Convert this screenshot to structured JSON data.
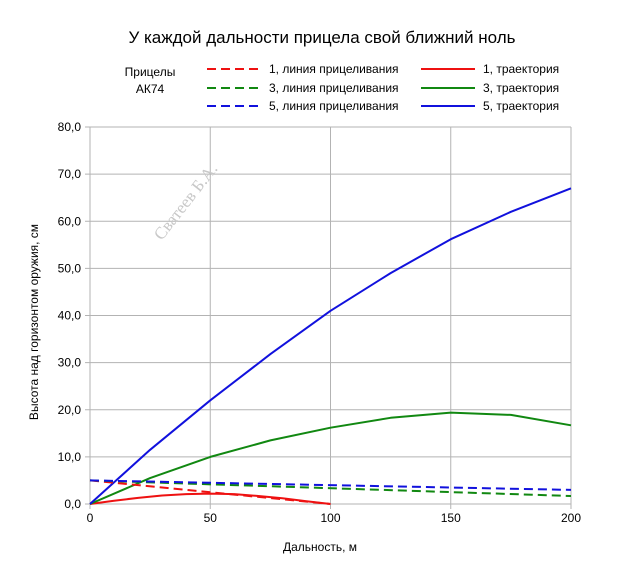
{
  "chart_data": {
    "type": "line",
    "title": "У каждой дальности прицела свой ближний ноль",
    "legend_title": [
      "Прицелы",
      "АК74"
    ],
    "xlabel": "Дальность, м",
    "ylabel": "Высота над горизонтом оружия, см",
    "xlim": [
      0,
      200
    ],
    "ylim": [
      0,
      80
    ],
    "x_ticks": [
      "0",
      "50",
      "100",
      "150",
      "200"
    ],
    "y_ticks": [
      "0,0",
      "10,0",
      "20,0",
      "30,0",
      "40,0",
      "50,0",
      "60,0",
      "70,0",
      "80,0"
    ],
    "grid": true,
    "legend_position": "top",
    "watermark": "Сватеев Б.А.",
    "series": [
      {
        "name": "1, линия прицеливания",
        "color": "#ee1111",
        "dash": true,
        "x": [
          0,
          100
        ],
        "y": [
          5.0,
          0.0
        ]
      },
      {
        "name": "1, траектория",
        "color": "#ee1111",
        "dash": false,
        "x": [
          0,
          10,
          20,
          30,
          40,
          50,
          60,
          70,
          80,
          90,
          100
        ],
        "y": [
          0.0,
          0.7,
          1.3,
          1.8,
          2.1,
          2.2,
          2.1,
          1.7,
          1.2,
          0.6,
          0.0
        ]
      },
      {
        "name": "3, линия прицеливания",
        "color": "#118811",
        "dash": true,
        "x": [
          0,
          200
        ],
        "y": [
          5.0,
          1.7
        ]
      },
      {
        "name": "3, траектория",
        "color": "#118811",
        "dash": false,
        "x": [
          0,
          25,
          50,
          75,
          100,
          125,
          150,
          175,
          200
        ],
        "y": [
          0.0,
          5.5,
          10.0,
          13.5,
          16.2,
          18.3,
          19.4,
          18.9,
          16.7
        ]
      },
      {
        "name": "5, линия прицеливания",
        "color": "#1111dd",
        "dash": true,
        "x": [
          0,
          200
        ],
        "y": [
          5.0,
          3.0
        ]
      },
      {
        "name": "5, траектория",
        "color": "#1111dd",
        "dash": false,
        "x": [
          0,
          25,
          50,
          75,
          100,
          125,
          150,
          175,
          200
        ],
        "y": [
          0.0,
          11.5,
          22.0,
          31.8,
          41.0,
          49.0,
          56.2,
          62.0,
          67.0
        ]
      }
    ]
  }
}
